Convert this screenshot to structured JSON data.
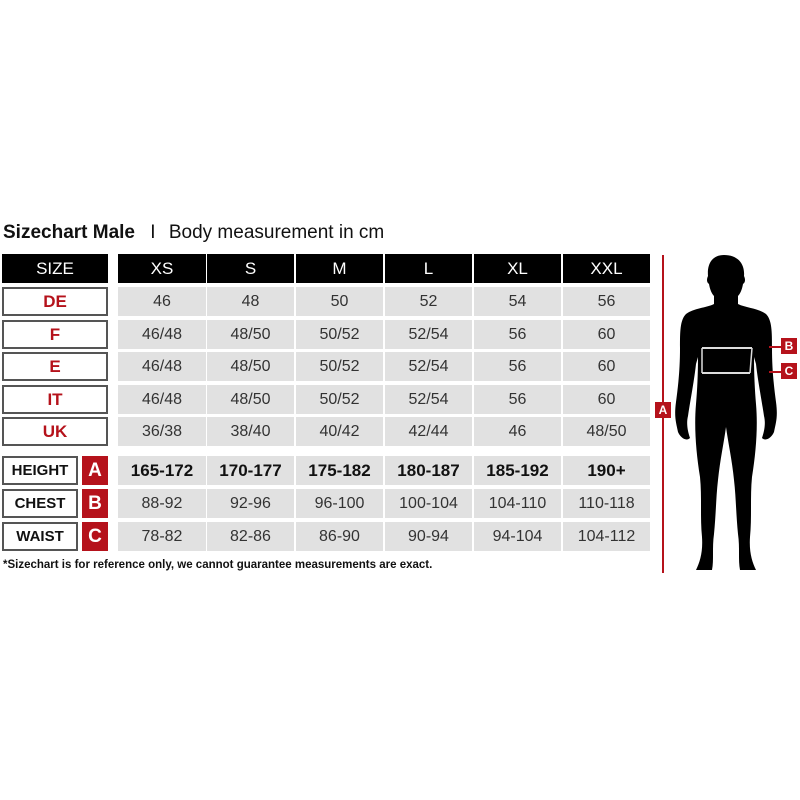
{
  "title": {
    "bold": "Sizechart Male",
    "separator": "I",
    "subtitle": "Body measurement in cm"
  },
  "header": {
    "label": "SIZE",
    "sizes": [
      "XS",
      "S",
      "M",
      "L",
      "XL",
      "XXL"
    ]
  },
  "size_rows": [
    {
      "label": "DE",
      "values": [
        "46",
        "48",
        "50",
        "52",
        "54",
        "56"
      ]
    },
    {
      "label": "F",
      "values": [
        "46/48",
        "48/50",
        "50/52",
        "52/54",
        "56",
        "60"
      ]
    },
    {
      "label": "E",
      "values": [
        "46/48",
        "48/50",
        "50/52",
        "52/54",
        "56",
        "60"
      ]
    },
    {
      "label": "IT",
      "values": [
        "46/48",
        "48/50",
        "50/52",
        "52/54",
        "56",
        "60"
      ]
    },
    {
      "label": "UK",
      "values": [
        "36/38",
        "38/40",
        "40/42",
        "42/44",
        "46",
        "48/50"
      ]
    }
  ],
  "measure_rows": [
    {
      "label": "HEIGHT",
      "letter": "A",
      "values": [
        "165-172",
        "170-177",
        "175-182",
        "180-187",
        "185-192",
        "190+"
      ]
    },
    {
      "label": "CHEST",
      "letter": "B",
      "values": [
        "88-92",
        "92-96",
        "96-100",
        "100-104",
        "104-110",
        "110-118"
      ]
    },
    {
      "label": "WAIST",
      "letter": "C",
      "values": [
        "78-82",
        "82-86",
        "86-90",
        "90-94",
        "94-104",
        "104-112"
      ]
    }
  ],
  "footnote": "*Sizechart is for reference only, we cannot guarantee measurements are exact.",
  "figure": {
    "height_tag": "A",
    "chest_tag": "B",
    "waist_tag": "C"
  },
  "colors": {
    "accent_red": "#b5121b",
    "header_bg": "#000000",
    "cell_bg": "#e1e1e1"
  }
}
